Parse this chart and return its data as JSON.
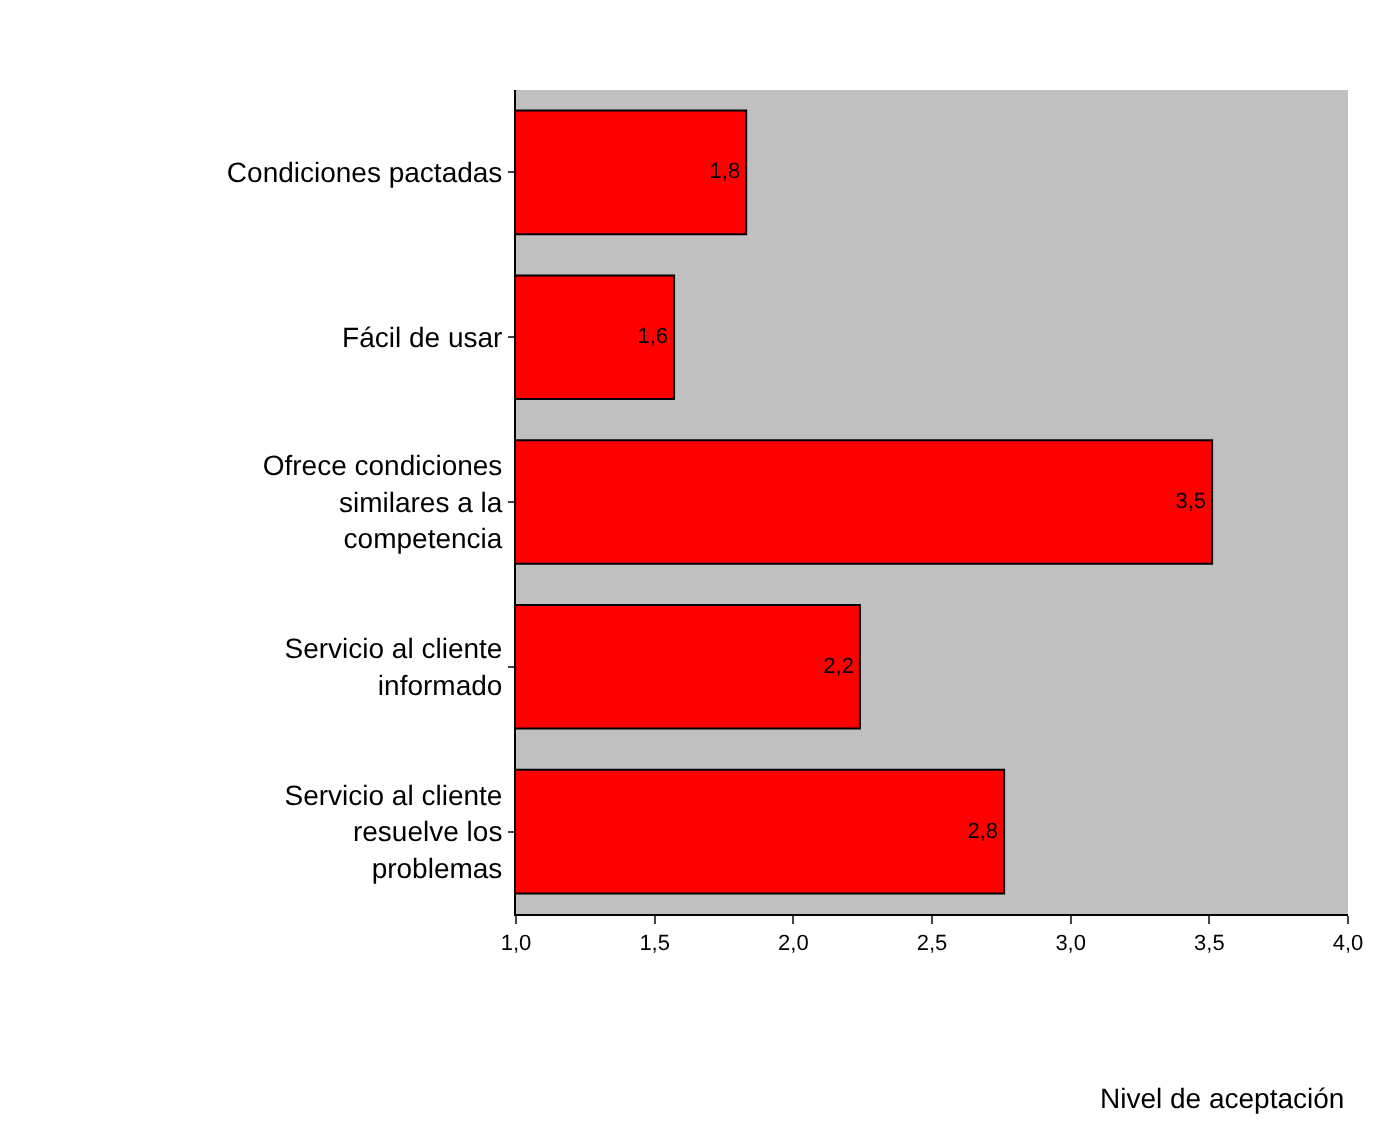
{
  "chart_data": {
    "type": "bar",
    "orientation": "horizontal",
    "xlabel": "Nivel de aceptación",
    "categories": [
      "Condiciones pactadas",
      "Fácil de usar",
      "Ofrece condiciones\nsimilares a la\ncompetencia",
      "Servicio al cliente\ninformado",
      "Servicio al cliente\nresuelve los\nproblemas"
    ],
    "values": [
      1.83,
      1.57,
      3.51,
      2.24,
      2.76
    ],
    "value_labels": [
      "1,8",
      "1,6",
      "3,5",
      "2,2",
      "2,8"
    ],
    "color": "#ff0000",
    "xlim": [
      1,
      4
    ],
    "xticks": [
      {
        "value": 1,
        "label": "1,0"
      },
      {
        "value": 1.5,
        "label": "1,5"
      },
      {
        "value": 2,
        "label": "2,0"
      },
      {
        "value": 2.5,
        "label": "2,5"
      },
      {
        "value": 3,
        "label": "3,0"
      },
      {
        "value": 3.5,
        "label": "3,5"
      },
      {
        "value": 4,
        "label": "4,0"
      }
    ],
    "grid": false,
    "legend": false
  }
}
